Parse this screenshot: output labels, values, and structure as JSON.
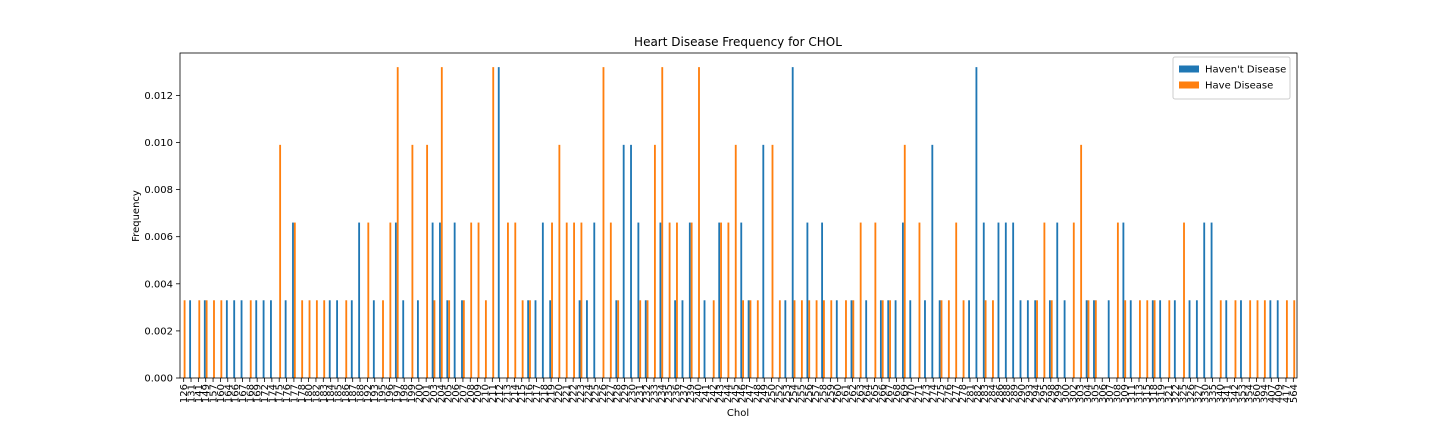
{
  "chart_data": {
    "type": "bar",
    "title": "Heart Disease Frequency for CHOL",
    "xlabel": "Chol",
    "ylabel": "Frequency",
    "categories": [
      126,
      131,
      141,
      149,
      157,
      160,
      164,
      166,
      167,
      168,
      169,
      172,
      174,
      175,
      176,
      177,
      178,
      180,
      182,
      183,
      184,
      185,
      186,
      187,
      188,
      192,
      193,
      195,
      196,
      197,
      198,
      199,
      200,
      201,
      203,
      204,
      205,
      206,
      207,
      208,
      209,
      210,
      211,
      212,
      213,
      214,
      215,
      216,
      217,
      218,
      219,
      220,
      221,
      222,
      223,
      224,
      225,
      226,
      227,
      228,
      229,
      230,
      231,
      232,
      233,
      234,
      235,
      236,
      237,
      239,
      240,
      241,
      242,
      243,
      244,
      245,
      246,
      247,
      248,
      249,
      250,
      252,
      253,
      254,
      255,
      256,
      257,
      258,
      259,
      260,
      261,
      262,
      263,
      264,
      265,
      266,
      267,
      268,
      269,
      270,
      271,
      273,
      274,
      275,
      276,
      277,
      278,
      281,
      282,
      283,
      284,
      286,
      288,
      289,
      290,
      293,
      294,
      295,
      298,
      299,
      300,
      302,
      303,
      304,
      305,
      306,
      307,
      308,
      309,
      311,
      313,
      315,
      318,
      319,
      321,
      322,
      325,
      326,
      327,
      330,
      335,
      340,
      341,
      342,
      353,
      354,
      360,
      394,
      407,
      409,
      417,
      564
    ],
    "series": [
      {
        "name": "Haven't Disease",
        "color": "#1f77b4",
        "values": [
          0,
          0.0033,
          0,
          0.0033,
          0,
          0,
          0.0033,
          0.0033,
          0.0033,
          0,
          0.0033,
          0.0033,
          0.0033,
          0,
          0.0033,
          0.0066,
          0,
          0,
          0,
          0,
          0.0033,
          0.0033,
          0,
          0.0033,
          0.0066,
          0,
          0.0033,
          0,
          0,
          0.0066,
          0.0033,
          0,
          0.0033,
          0,
          0.0066,
          0.0066,
          0.0033,
          0.0066,
          0.0033,
          0,
          0,
          0,
          0,
          0.0132,
          0,
          0,
          0,
          0.0033,
          0.0033,
          0.0066,
          0.0033,
          0,
          0,
          0,
          0.0033,
          0.0033,
          0.0066,
          0,
          0,
          0.0033,
          0.0099,
          0.0099,
          0.0066,
          0.0033,
          0,
          0.0066,
          0,
          0.0033,
          0.0033,
          0.0066,
          0,
          0.0033,
          0,
          0.0066,
          0,
          0,
          0.0066,
          0.0033,
          0,
          0.0099,
          0,
          0,
          0.0033,
          0.0132,
          0,
          0.0066,
          0,
          0.0066,
          0,
          0.0033,
          0,
          0.0033,
          0,
          0.0033,
          0,
          0.0033,
          0.0033,
          0.0033,
          0.0066,
          0.0033,
          0,
          0.0033,
          0.0099,
          0.0033,
          0,
          0,
          0,
          0.0033,
          0.0132,
          0.0066,
          0,
          0.0066,
          0.0066,
          0.0066,
          0.0033,
          0.0033,
          0.0033,
          0,
          0.0033,
          0.0066,
          0.0033,
          0,
          0,
          0.0033,
          0.0033,
          0,
          0.0033,
          0,
          0.0066,
          0.0033,
          0,
          0,
          0.0033,
          0.0033,
          0,
          0.0033,
          0,
          0.0033,
          0.0033,
          0.0066,
          0.0066,
          0,
          0.0033,
          0,
          0.0033,
          0,
          0,
          0,
          0.0033,
          0.0033,
          0,
          0
        ]
      },
      {
        "name": "Have Disease",
        "color": "#ff7f0e",
        "values": [
          0.0033,
          0,
          0.0033,
          0.0033,
          0.0033,
          0.0033,
          0,
          0,
          0,
          0.0033,
          0,
          0,
          0,
          0.0099,
          0,
          0.0066,
          0.0033,
          0.0033,
          0.0033,
          0.0033,
          0,
          0,
          0.0033,
          0,
          0,
          0.0066,
          0,
          0.0033,
          0.0066,
          0.0132,
          0,
          0.0099,
          0,
          0.0099,
          0.0033,
          0.0132,
          0.0033,
          0,
          0.0033,
          0.0066,
          0.0066,
          0.0033,
          0.0132,
          0,
          0.0066,
          0.0066,
          0.0033,
          0.0033,
          0,
          0,
          0.0066,
          0.0099,
          0.0066,
          0.0066,
          0.0066,
          0,
          0,
          0.0132,
          0.0066,
          0.0033,
          0,
          0,
          0.0033,
          0.0033,
          0.0099,
          0.0132,
          0.0066,
          0.0066,
          0,
          0.0066,
          0.0132,
          0,
          0.0033,
          0.0066,
          0.0066,
          0.0099,
          0.0033,
          0.0033,
          0.0033,
          0,
          0.0099,
          0.0033,
          0,
          0.0033,
          0.0033,
          0.0033,
          0.0033,
          0.0033,
          0.0033,
          0,
          0.0033,
          0.0033,
          0.0066,
          0,
          0.0066,
          0.0033,
          0.0033,
          0,
          0.0099,
          0,
          0.0066,
          0,
          0,
          0.0033,
          0.0033,
          0.0066,
          0.0033,
          0,
          0,
          0.0033,
          0.0033,
          0,
          0,
          0,
          0,
          0,
          0.0033,
          0.0066,
          0.0033,
          0,
          0,
          0.0066,
          0.0099,
          0.0033,
          0.0033,
          0,
          0,
          0.0066,
          0.0033,
          0,
          0.0033,
          0.0033,
          0.0033,
          0,
          0.0033,
          0,
          0.0066,
          0,
          0,
          0,
          0,
          0.0033,
          0,
          0.0033,
          0,
          0.0033,
          0.0033,
          0.0033,
          0,
          0,
          0.0033,
          0.0033
        ]
      }
    ],
    "ylim": [
      0,
      0.0138
    ],
    "yticks": [
      {
        "value": 0,
        "label": "0.000"
      },
      {
        "value": 0.002,
        "label": "0.002"
      },
      {
        "value": 0.004,
        "label": "0.004"
      },
      {
        "value": 0.006,
        "label": "0.006"
      },
      {
        "value": 0.008,
        "label": "0.008"
      },
      {
        "value": 0.01,
        "label": "0.010"
      },
      {
        "value": 0.012,
        "label": "0.012"
      }
    ],
    "legend": "upper right"
  }
}
